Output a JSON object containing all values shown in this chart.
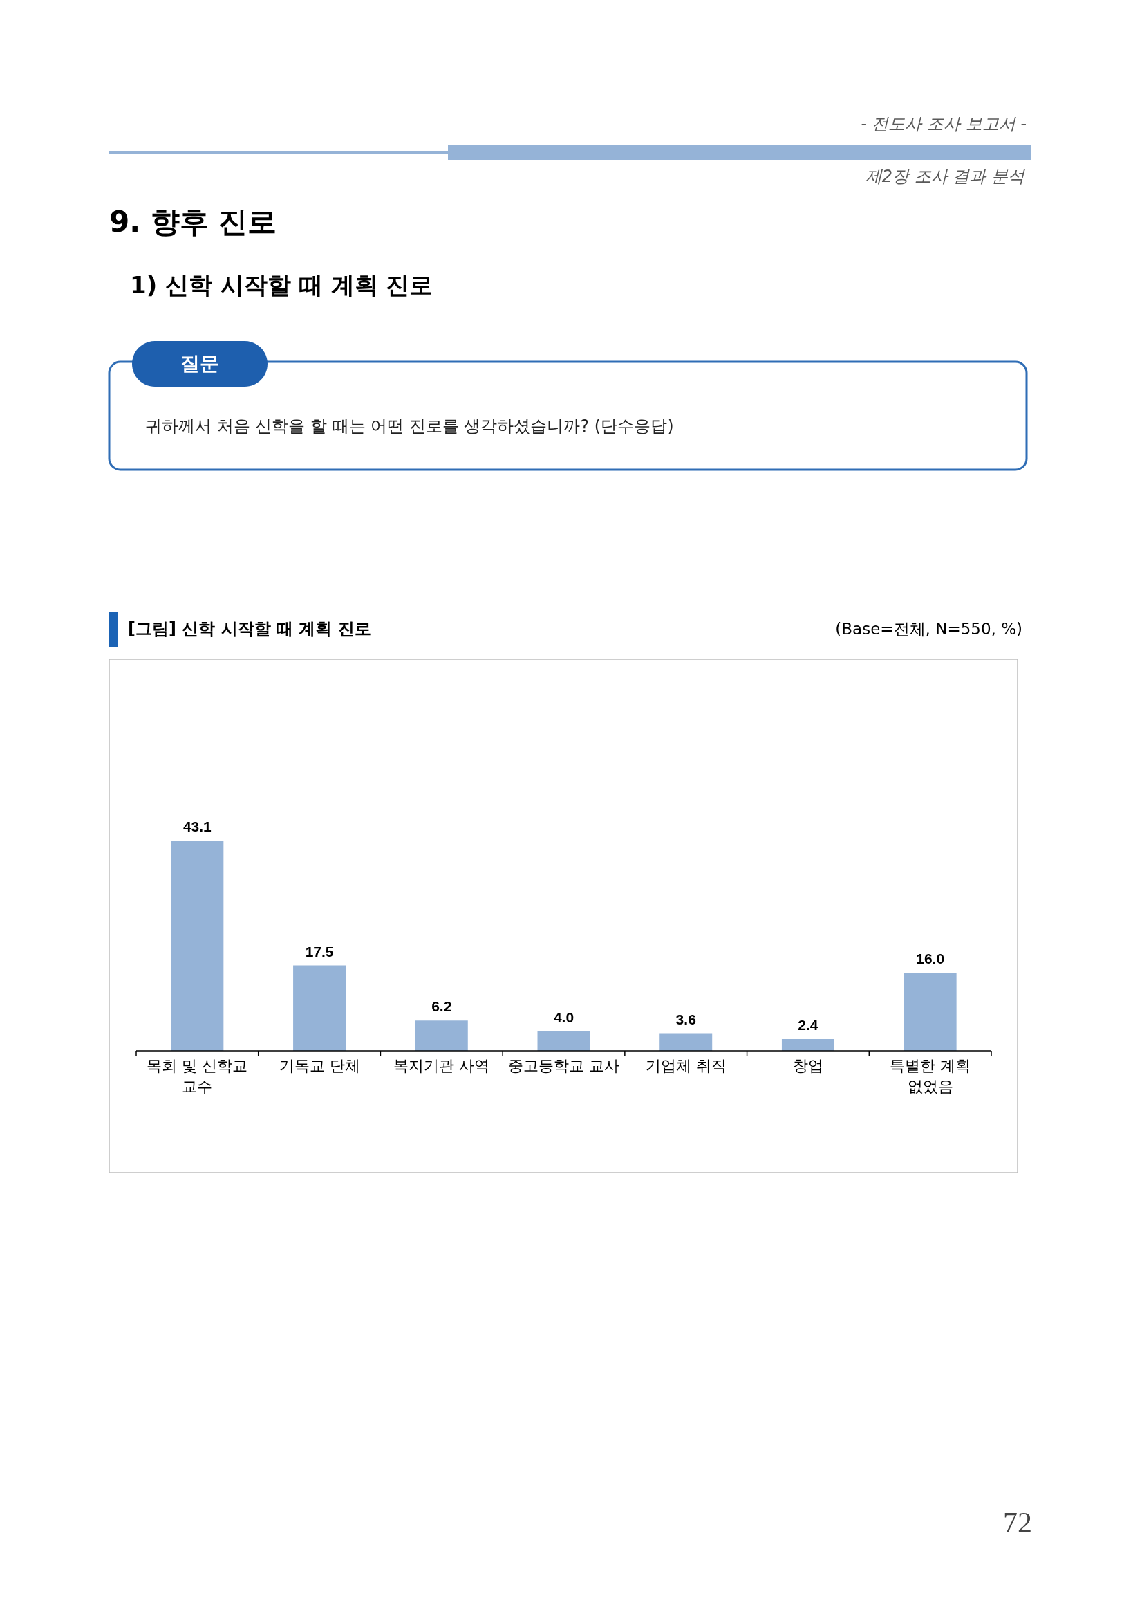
{
  "chart_data": {
    "type": "bar",
    "title": "[그림] 신학 시작할 때 계획 진로",
    "annotations": [
      "- 전도사 조사 보고서 -",
      "제2장 조사 결과 분석",
      "9. 향후 진로",
      "1) 신학 시작할 때 계획 진로",
      "질문",
      "귀하께서 처음 신학을 할 때는 어떤 진로를 생각하셨습니까? (단수응답)",
      "(Base=전체, N=550, %)",
      "72"
    ],
    "categories": [
      "목회 및 신학교 교수",
      "기독교 단체",
      "복지기관 사역",
      "중고등학교 교사",
      "기업체 취직",
      "창업",
      "특별한 계획 없었음"
    ],
    "values": [
      43.1,
      17.5,
      6.2,
      4.0,
      3.6,
      2.4,
      16.0
    ],
    "value_labels": [
      "43.1",
      "17.5",
      "6.2",
      "4.0",
      "3.6",
      "2.4",
      "16.0"
    ],
    "color": "#95b3d7"
  }
}
